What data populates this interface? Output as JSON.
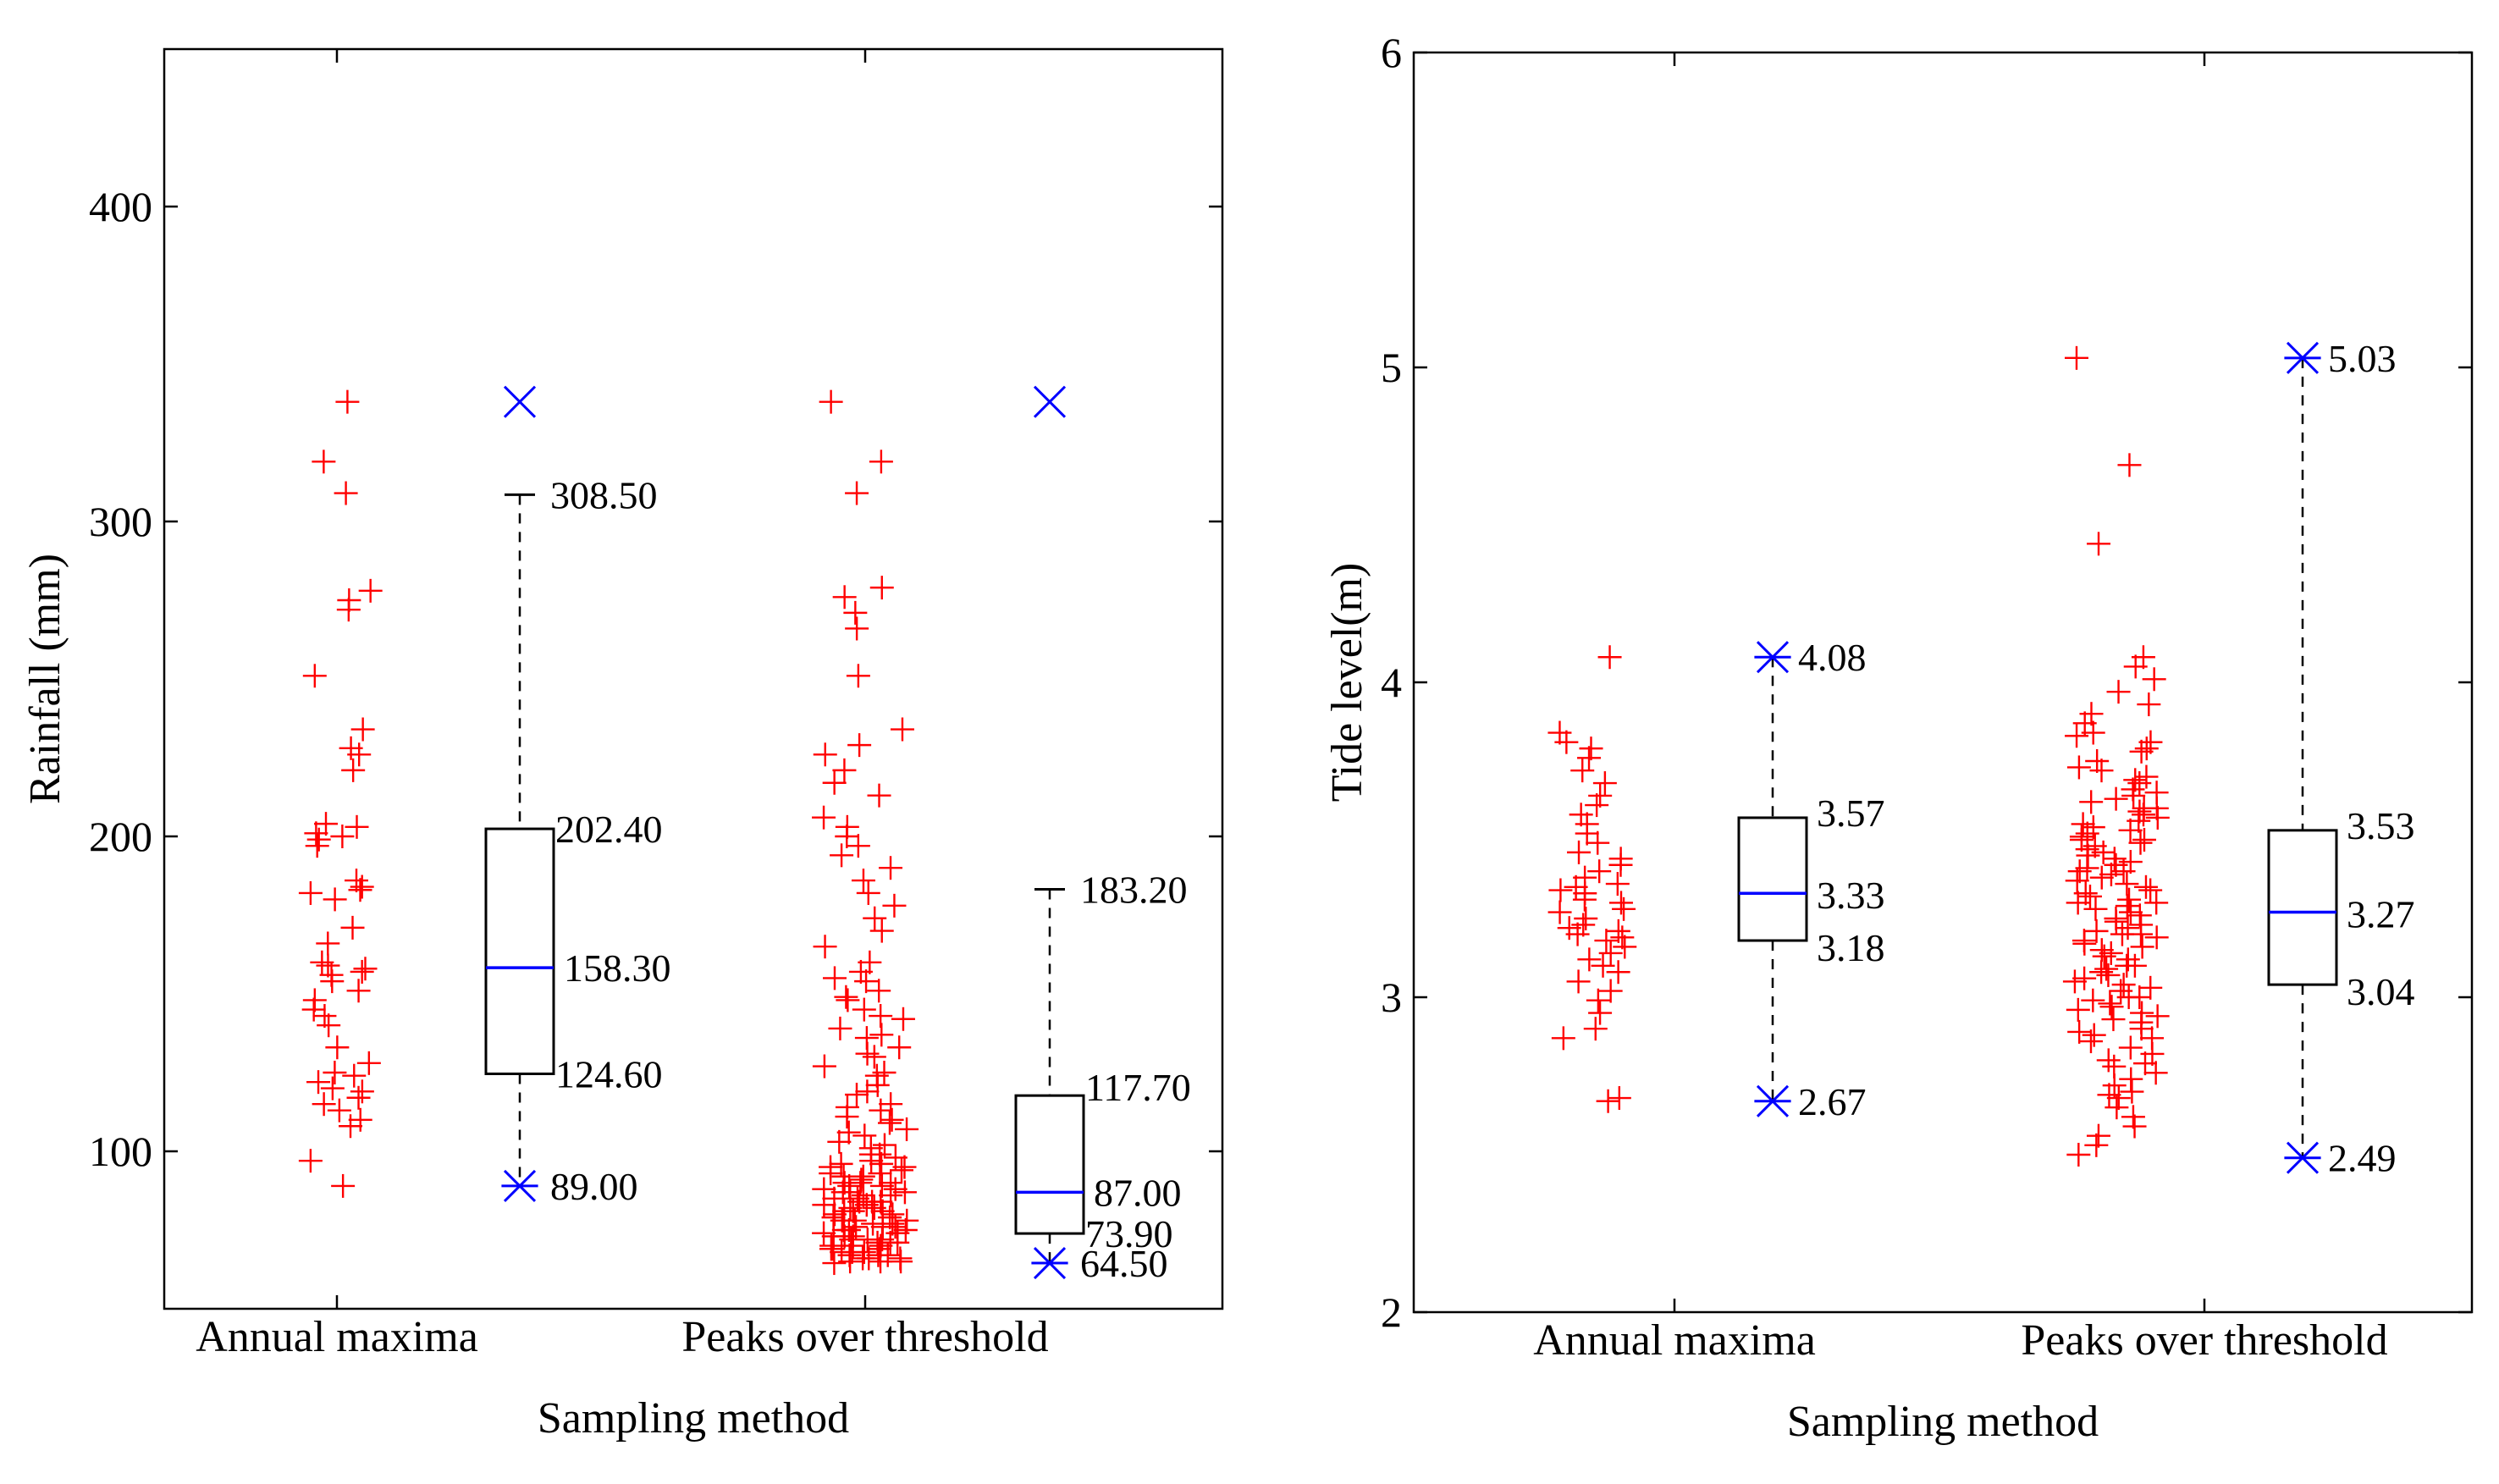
{
  "chart_data": [
    {
      "type": "boxplot",
      "xlabel": "Sampling method",
      "ylabel": "Rainfall (mm)",
      "ylim": [
        50,
        450
      ],
      "yticks": [
        100,
        200,
        300,
        400
      ],
      "ytick_labels": [
        "100",
        "200",
        "300",
        "400"
      ],
      "categories": [
        "Annual maxima",
        "Peaks over threshold"
      ],
      "colors": {
        "points": "#ff0000",
        "median": "#0000ff",
        "extreme_marker": "#0000ff",
        "box": "#000000"
      },
      "boxes": [
        {
          "category": "Annual maxima",
          "min": 89.0,
          "q1": 124.6,
          "median": 158.3,
          "q3": 202.4,
          "max": 308.5,
          "outlier": 338.0,
          "labels": {
            "max": "308.50",
            "q3": "202.40",
            "median": "158.30",
            "q1": "124.60",
            "min": "89.00"
          }
        },
        {
          "category": "Peaks over threshold",
          "min": 64.5,
          "q1": 73.9,
          "median": 87.0,
          "q3": 117.7,
          "max": 183.2,
          "outlier": 338.0,
          "labels": {
            "max": "183.20",
            "q3": "117.70",
            "median": "87.00",
            "q1": "73.90",
            "min": "64.50"
          }
        }
      ],
      "scatter": [
        {
          "category": "Annual maxima",
          "values": [
            338,
            319,
            309,
            278,
            275,
            272,
            251,
            234,
            228,
            226,
            221,
            204,
            203,
            201,
            200,
            199,
            197,
            186,
            184,
            183,
            182,
            180,
            171,
            166,
            160,
            159,
            158,
            157,
            156,
            154,
            151,
            148,
            145,
            143,
            140,
            133,
            128,
            125,
            124,
            122,
            120,
            119,
            117,
            115,
            113,
            110,
            108,
            97,
            89
          ]
        },
        {
          "category": "Peaks over threshold",
          "values": [
            338,
            319,
            309,
            279,
            276,
            271,
            266,
            251,
            234,
            229,
            226,
            221,
            217,
            213,
            206,
            203,
            200,
            197,
            194,
            190,
            186,
            182,
            178,
            174,
            170,
            165,
            160,
            157,
            154,
            151,
            148,
            145,
            142,
            139,
            136,
            133,
            130,
            127,
            124,
            121,
            118,
            115,
            113,
            111,
            109,
            107,
            105,
            103,
            101,
            99,
            98,
            97,
            96,
            95,
            94,
            93,
            92,
            91,
            90,
            89,
            88,
            87,
            86,
            85,
            84,
            83,
            82,
            81,
            80,
            79,
            78,
            77,
            76,
            75,
            74,
            73,
            72,
            71,
            70,
            69,
            68,
            67,
            66,
            65,
            64.5,
            99,
            96,
            93,
            90,
            87,
            84,
            81,
            78,
            75,
            72,
            69,
            66,
            95,
            89,
            83,
            77,
            71,
            65,
            92,
            86,
            80,
            74,
            68,
            88,
            82,
            76,
            70,
            85,
            79,
            73,
            67,
            76,
            72,
            70,
            68,
            66,
            65,
            67,
            69,
            71,
            73,
            75,
            78,
            81,
            84,
            87,
            90,
            102,
            106,
            110,
            114,
            119,
            125,
            131,
            137,
            143,
            149,
            155
          ]
        }
      ]
    },
    {
      "type": "boxplot",
      "xlabel": "Sampling method",
      "ylabel": "Tide level(m)",
      "ylim": [
        2,
        6
      ],
      "yticks": [
        2,
        3,
        4,
        5,
        6
      ],
      "ytick_labels": [
        "2",
        "3",
        "4",
        "5",
        "6"
      ],
      "categories": [
        "Annual maxima",
        "Peaks over threshold"
      ],
      "colors": {
        "points": "#ff0000",
        "median": "#0000ff",
        "extreme_marker": "#0000ff",
        "box": "#000000"
      },
      "boxes": [
        {
          "category": "Annual maxima",
          "min": 2.67,
          "q1": 3.18,
          "median": 3.33,
          "q3": 3.57,
          "max": 4.08,
          "labels": {
            "max": "4.08",
            "q3": "3.57",
            "median": "3.33",
            "q1": "3.18",
            "min": "2.67"
          }
        },
        {
          "category": "Peaks over threshold",
          "min": 2.49,
          "q1": 3.04,
          "median": 3.27,
          "q3": 3.53,
          "max": 5.03,
          "labels": {
            "max": "5.03",
            "q3": "3.53",
            "median": "3.27",
            "q1": "3.04",
            "min": "2.49"
          }
        }
      ],
      "scatter": [
        {
          "category": "Annual maxima",
          "values": [
            4.08,
            3.84,
            3.81,
            3.79,
            3.76,
            3.72,
            3.68,
            3.64,
            3.61,
            3.58,
            3.55,
            3.52,
            3.49,
            3.46,
            3.44,
            3.42,
            3.4,
            3.38,
            3.36,
            3.35,
            3.34,
            3.33,
            3.31,
            3.3,
            3.28,
            3.27,
            3.25,
            3.23,
            3.22,
            3.21,
            3.2,
            3.19,
            3.18,
            3.16,
            3.14,
            3.12,
            3.1,
            3.08,
            3.05,
            3.02,
            2.99,
            2.95,
            2.9,
            2.87,
            2.68,
            2.67
          ]
        },
        {
          "category": "Peaks over threshold",
          "values": [
            5.03,
            4.69,
            4.44,
            4.08,
            4.05,
            4.01,
            3.97,
            3.93,
            3.9,
            3.87,
            3.84,
            3.81,
            3.78,
            3.75,
            3.72,
            3.7,
            3.68,
            3.66,
            3.64,
            3.62,
            3.6,
            3.58,
            3.56,
            3.54,
            3.52,
            3.5,
            3.48,
            3.46,
            3.44,
            3.42,
            3.4,
            3.38,
            3.36,
            3.34,
            3.32,
            3.3,
            3.28,
            3.26,
            3.24,
            3.22,
            3.2,
            3.18,
            3.16,
            3.14,
            3.12,
            3.1,
            3.08,
            3.06,
            3.04,
            3.02,
            3.0,
            2.98,
            2.96,
            2.94,
            2.92,
            2.9,
            2.88,
            2.86,
            2.84,
            2.82,
            2.8,
            2.78,
            2.76,
            2.74,
            2.72,
            2.7,
            2.68,
            2.65,
            2.62,
            2.59,
            2.56,
            2.53,
            2.5,
            3.45,
            3.35,
            3.25,
            3.15,
            3.05,
            3.55,
            3.65,
            2.95,
            3.4,
            3.3,
            3.2,
            3.1,
            3.5,
            3.6,
            3.0,
            3.43,
            3.33,
            3.23,
            3.13,
            3.53,
            3.63,
            3.03,
            2.93,
            3.37,
            3.27,
            3.17,
            3.47,
            3.57,
            3.07,
            2.97,
            3.73,
            2.87,
            3.39,
            3.29,
            3.19,
            3.49,
            3.59,
            3.09,
            2.99,
            3.69,
            2.89,
            3.83,
            2.79,
            2.69,
            3.79,
            3.31,
            3.21,
            3.41,
            3.51
          ]
        }
      ]
    }
  ]
}
